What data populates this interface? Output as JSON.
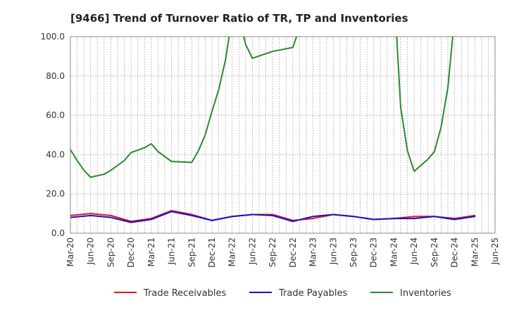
{
  "chart_data": {
    "type": "line",
    "title": "[9466]  Trend of Turnover Ratio of TR, TP and Inventories",
    "xlabel": "",
    "ylabel": "",
    "ylim": [
      0,
      100
    ],
    "y_ticks": [
      "0.0",
      "20.0",
      "40.0",
      "60.0",
      "80.0",
      "100.0"
    ],
    "x_tick_labels": [
      "Mar-20",
      "Jun-20",
      "Sep-20",
      "Dec-20",
      "Mar-21",
      "Jun-21",
      "Sep-21",
      "Dec-21",
      "Mar-22",
      "Jun-22",
      "Sep-22",
      "Dec-22",
      "Mar-23",
      "Jun-23",
      "Sep-23",
      "Dec-23",
      "Mar-24",
      "Jun-24",
      "Sep-24",
      "Dec-24",
      "Mar-25",
      "Jun-25"
    ],
    "x_months": [
      "Mar-20",
      "Apr-20",
      "May-20",
      "Jun-20",
      "Jul-20",
      "Aug-20",
      "Sep-20",
      "Oct-20",
      "Nov-20",
      "Dec-20",
      "Jan-21",
      "Feb-21",
      "Mar-21",
      "Apr-21",
      "May-21",
      "Jun-21",
      "Jul-21",
      "Aug-21",
      "Sep-21",
      "Oct-21",
      "Nov-21",
      "Dec-21",
      "Jan-22",
      "Feb-22",
      "Mar-22",
      "Apr-22",
      "May-22",
      "Jun-22",
      "Jul-22",
      "Aug-22",
      "Sep-22",
      "Oct-22",
      "Nov-22",
      "Dec-22",
      "Jan-23",
      "Feb-23",
      "Mar-23",
      "Apr-23",
      "May-23",
      "Jun-23",
      "Jul-23",
      "Aug-23",
      "Sep-23",
      "Oct-23",
      "Nov-23",
      "Dec-23",
      "Jan-24",
      "Feb-24",
      "Mar-24",
      "Apr-24",
      "May-24",
      "Jun-24",
      "Jul-24",
      "Aug-24",
      "Sep-24",
      "Oct-24",
      "Nov-24",
      "Dec-24",
      "Jan-25",
      "Feb-25",
      "Mar-25",
      "Apr-25",
      "May-25",
      "Jun-25"
    ],
    "grid": true,
    "legend_position": "bottom",
    "series": [
      {
        "name": "Trade Receivables",
        "color": "#e8141b",
        "points": [
          [
            "Mar-20",
            9.0
          ],
          [
            "Jun-20",
            10.0
          ],
          [
            "Sep-20",
            9.0
          ],
          [
            "Dec-20",
            6.0
          ],
          [
            "Mar-21",
            7.5
          ],
          [
            "Jun-21",
            11.5
          ],
          [
            "Sep-21",
            9.5
          ],
          [
            "Dec-21",
            6.5
          ],
          [
            "Mar-22",
            8.5
          ],
          [
            "Jun-22",
            9.5
          ],
          [
            "Sep-22",
            9.5
          ],
          [
            "Dec-22",
            6.5
          ],
          [
            "Mar-23",
            7.5
          ],
          [
            "Jun-23",
            9.5
          ],
          [
            "Sep-23",
            8.5
          ],
          [
            "Dec-23",
            7.0
          ],
          [
            "Mar-24",
            7.5
          ],
          [
            "Jun-24",
            8.5
          ],
          [
            "Sep-24",
            8.5
          ],
          [
            "Dec-24",
            7.5
          ],
          [
            "Mar-25",
            9.0
          ]
        ]
      },
      {
        "name": "Trade Payables",
        "color": "#1414c8",
        "points": [
          [
            "Mar-20",
            8.0
          ],
          [
            "Jun-20",
            9.0
          ],
          [
            "Sep-20",
            8.0
          ],
          [
            "Dec-20",
            5.5
          ],
          [
            "Mar-21",
            7.0
          ],
          [
            "Jun-21",
            11.0
          ],
          [
            "Sep-21",
            9.0
          ],
          [
            "Dec-21",
            6.5
          ],
          [
            "Mar-22",
            8.5
          ],
          [
            "Jun-22",
            9.5
          ],
          [
            "Sep-22",
            9.0
          ],
          [
            "Dec-22",
            6.0
          ],
          [
            "Mar-23",
            8.5
          ],
          [
            "Jun-23",
            9.5
          ],
          [
            "Sep-23",
            8.5
          ],
          [
            "Dec-23",
            7.0
          ],
          [
            "Mar-24",
            7.5
          ],
          [
            "Jun-24",
            7.5
          ],
          [
            "Sep-24",
            8.5
          ],
          [
            "Dec-24",
            7.0
          ],
          [
            "Mar-25",
            8.5
          ]
        ]
      },
      {
        "name": "Inventories",
        "color": "#2a8a2a",
        "points": [
          [
            "Mar-20",
            42.5
          ],
          [
            "Apr-20",
            37.0
          ],
          [
            "May-20",
            32.0
          ],
          [
            "Jun-20",
            28.5
          ],
          [
            "Aug-20",
            30.0
          ],
          [
            "Sep-20",
            32.0
          ],
          [
            "Nov-20",
            37.0
          ],
          [
            "Dec-20",
            41.0
          ],
          [
            "Feb-21",
            43.5
          ],
          [
            "Mar-21",
            45.5
          ],
          [
            "Apr-21",
            41.5
          ],
          [
            "Jun-21",
            36.5
          ],
          [
            "Sep-21",
            36.0
          ],
          [
            "Oct-21",
            42.0
          ],
          [
            "Nov-21",
            50.0
          ],
          [
            "Dec-21",
            62.0
          ],
          [
            "Jan-22",
            73.0
          ],
          [
            "Feb-22",
            88.0
          ],
          [
            "Mar-22",
            110.0
          ],
          [
            "Apr-22",
            110.0
          ],
          [
            "May-22",
            96.0
          ],
          [
            "Jun-22",
            89.0
          ],
          [
            "Sep-22",
            92.5
          ],
          [
            "Dec-22",
            94.5
          ],
          [
            "Mar-23",
            125.0
          ],
          [
            "Mar-24",
            125.0
          ],
          [
            "Apr-24",
            64.0
          ],
          [
            "May-24",
            42.0
          ],
          [
            "Jun-24",
            31.5
          ],
          [
            "Jul-24",
            34.5
          ],
          [
            "Aug-24",
            37.5
          ],
          [
            "Sep-24",
            41.5
          ],
          [
            "Oct-24",
            54.0
          ],
          [
            "Nov-24",
            74.0
          ],
          [
            "Dec-24",
            110.0
          ]
        ]
      }
    ]
  }
}
